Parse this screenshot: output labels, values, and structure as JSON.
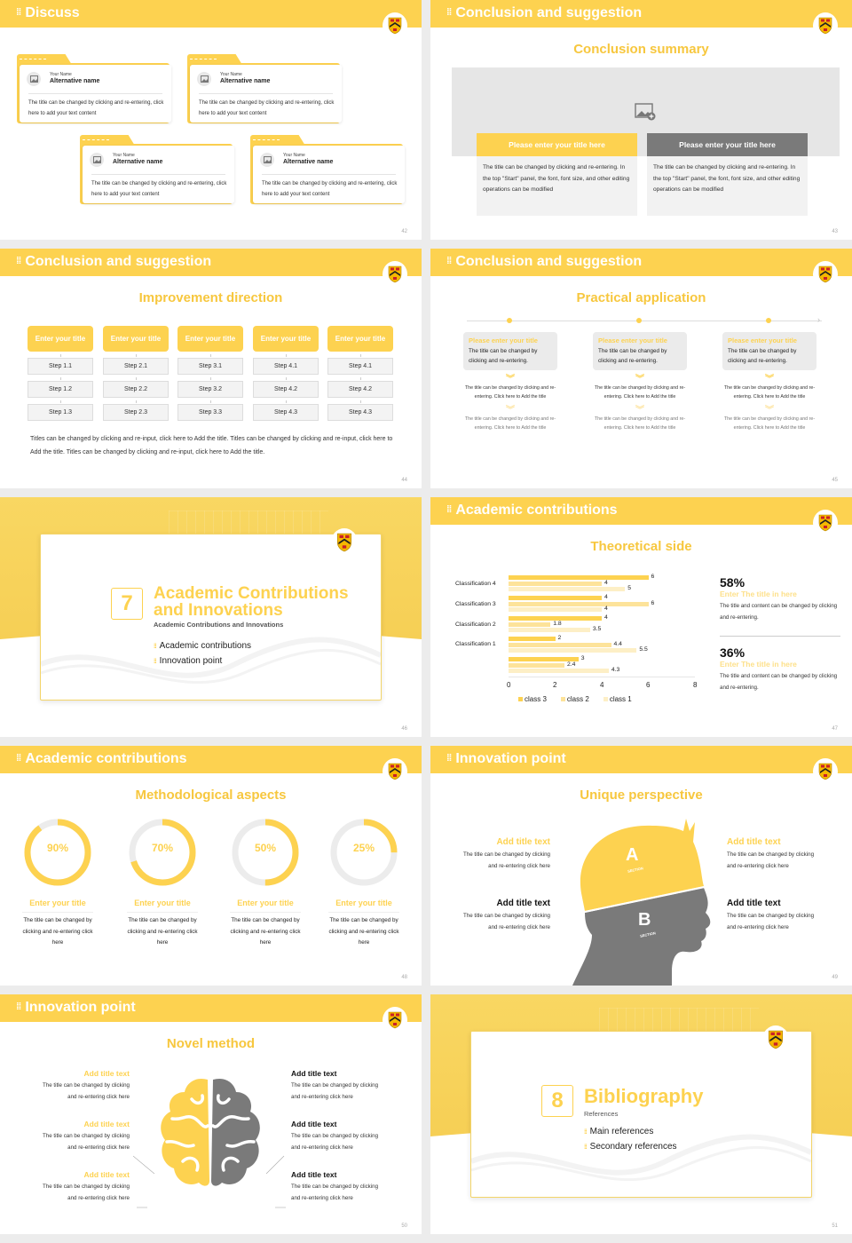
{
  "colors": {
    "accent": "#fdd250",
    "accent_light": "#fde08a",
    "gray": "#777777",
    "bg": "#ececec"
  },
  "slides": {
    "s42": {
      "header": "Discuss",
      "page": "42",
      "cards": [
        {
          "your_name": "Your Name",
          "alt_name": "Alternative name",
          "text": "The title can be changed by clicking and re-entering, click here to add your text content"
        },
        {
          "your_name": "Your Name",
          "alt_name": "Alternative name",
          "text": "The title can be changed by clicking and re-entering, click here to add your text content"
        },
        {
          "your_name": "Your Name",
          "alt_name": "Alternative name",
          "text": "The title can be changed by clicking and re-entering, click here to add your text content"
        },
        {
          "your_name": "Your Name",
          "alt_name": "Alternative name",
          "text": "The title can be changed by clicking and re-entering, click here to add your text content"
        }
      ]
    },
    "s43": {
      "header": "Conclusion and suggestion",
      "subtitle": "Conclusion summary",
      "page": "43",
      "image_icon": "image-add-icon",
      "boxes": [
        {
          "title": "Please enter your title here",
          "text": "The title can be changed by clicking and re-entering. In the top \"Start\" panel, the font, font size, and other editing operations can be modified"
        },
        {
          "title": "Please enter your title here",
          "text": "The title can be changed by clicking and re-entering. In the top \"Start\" panel, the font, font size, and other editing operations can be modified"
        }
      ]
    },
    "s44": {
      "header": "Conclusion and suggestion",
      "subtitle": "Improvement direction",
      "page": "44",
      "columns": [
        {
          "title": "Enter your title",
          "steps": [
            "Step 1.1",
            "Step 1.2",
            "Step 1.3"
          ]
        },
        {
          "title": "Enter your title",
          "steps": [
            "Step 2.1",
            "Step 2.2",
            "Step 2.3"
          ]
        },
        {
          "title": "Enter your title",
          "steps": [
            "Step 3.1",
            "Step 3.2",
            "Step 3.3"
          ]
        },
        {
          "title": "Enter your title",
          "steps": [
            "Step 4.1",
            "Step 4.2",
            "Step 4.3"
          ]
        },
        {
          "title": "Enter your title",
          "steps": [
            "Step 4.1",
            "Step 4.2",
            "Step 4.3"
          ]
        }
      ],
      "paragraph": "Titles can be changed by clicking and re-input, click here to Add the title. Titles can be changed by clicking and re-input, click here to Add the title. Titles can be changed by clicking and re-input, click here to Add the title."
    },
    "s45": {
      "header": "Conclusion and suggestion",
      "subtitle": "Practical application",
      "page": "45",
      "columns": [
        {
          "title": "Please enter your title",
          "body": "The title can be changed by clicking and re-entering.",
          "p1": "The title can be changed by clicking and re-entering. Click here to Add the title",
          "p2": "The title can be changed by clicking and re-entering. Click here to Add the title"
        },
        {
          "title": "Please enter your title",
          "body": "The title can be changed by clicking and re-entering.",
          "p1": "The title can be changed by clicking and re-entering. Click here to Add the title",
          "p2": "The title can be changed by clicking and re-entering. Click here to Add the title"
        },
        {
          "title": "Please enter your title",
          "body": "The title can be changed by clicking and re-entering.",
          "p1": "The title can be changed by clicking and re-entering. Click here to Add the title",
          "p2": "The title can be changed by clicking and re-entering. Click here to Add the title"
        }
      ]
    },
    "s46": {
      "number": "7",
      "title_line1": "Academic Contributions",
      "title_line2": "and Innovations",
      "subtitle": "Academic Contributions and Innovations",
      "items": [
        "Academic contributions",
        "Innovation point"
      ],
      "page": "46"
    },
    "s47": {
      "header": "Academic contributions",
      "subtitle": "Theoretical side",
      "page": "47",
      "stats": [
        {
          "value": "58%",
          "title": "Enter The title in here",
          "text": "The title and content can be changed by clicking and re-entering."
        },
        {
          "value": "36%",
          "title": "Enter The title in here",
          "text": "The title and content can be changed by clicking and re-entering."
        }
      ]
    },
    "s48": {
      "header": "Academic contributions",
      "subtitle": "Methodological aspects",
      "page": "48",
      "donuts": [
        {
          "value": "90%",
          "pct": 90,
          "title": "Enter your title",
          "text": "The title can be changed by clicking and re-entering click here"
        },
        {
          "value": "70%",
          "pct": 70,
          "title": "Enter your title",
          "text": "The title can be changed by clicking and re-entering click here"
        },
        {
          "value": "50%",
          "pct": 50,
          "title": "Enter your title",
          "text": "The title can be changed by clicking and re-entering click here"
        },
        {
          "value": "25%",
          "pct": 25,
          "title": "Enter your title",
          "text": "The title can be changed by clicking and re-entering click here"
        }
      ]
    },
    "s49": {
      "header": "Innovation point",
      "subtitle": "Unique perspective",
      "page": "49",
      "head": {
        "a_letter": "A",
        "a_label": "SECTION",
        "b_letter": "B",
        "b_label": "SECTION"
      },
      "items": [
        {
          "title": "Add title text",
          "text": "The title can be changed by clicking and re-entering click here"
        },
        {
          "title": "Add title text",
          "text": "The title can be changed by clicking and re-entering click here"
        },
        {
          "title": "Add title text",
          "text": "The title can be changed by clicking and re-entering click here"
        },
        {
          "title": "Add title text",
          "text": "The title can be changed by clicking and re-entering click here"
        }
      ]
    },
    "s50": {
      "header": "Innovation point",
      "subtitle": "Novel method",
      "page": "50",
      "left": [
        {
          "title": "Add title text",
          "text": "The title can be changed by clicking and re-entering click here"
        },
        {
          "title": "Add title text",
          "text": "The title can be changed by clicking and re-entering click here"
        },
        {
          "title": "Add title text",
          "text": "The title can be changed by clicking and re-entering click here"
        }
      ],
      "right": [
        {
          "title": "Add title text",
          "text": "The title can be changed by clicking and re-entering click here"
        },
        {
          "title": "Add title text",
          "text": "The title can be changed by clicking and re-entering click here"
        },
        {
          "title": "Add title text",
          "text": "The title can be changed by clicking and re-entering click here"
        }
      ]
    },
    "s51": {
      "number": "8",
      "title": "Bibliography",
      "subtitle": "References",
      "items": [
        "Main references",
        "Secondary references"
      ],
      "page": "51"
    }
  },
  "chart_data": {
    "type": "bar",
    "orientation": "horizontal",
    "title": "Theoretical side",
    "categories": [
      "Classification 4",
      "Classification 3",
      "Classification 2",
      "Classification 1",
      ""
    ],
    "series": [
      {
        "name": "class 3",
        "color": "#fdd250",
        "values": [
          6,
          4,
          4,
          2,
          3
        ]
      },
      {
        "name": "class 2",
        "color": "#fde39a",
        "values": [
          4,
          6,
          1.8,
          4.4,
          2.4
        ]
      },
      {
        "name": "class 1",
        "color": "#fdefc6",
        "values": [
          5,
          4,
          3.5,
          5.5,
          4.3
        ]
      }
    ],
    "x_ticks": [
      "0",
      "2",
      "4",
      "6",
      "8"
    ],
    "xlim": [
      0,
      8
    ],
    "legend_position": "bottom",
    "grid": false
  }
}
